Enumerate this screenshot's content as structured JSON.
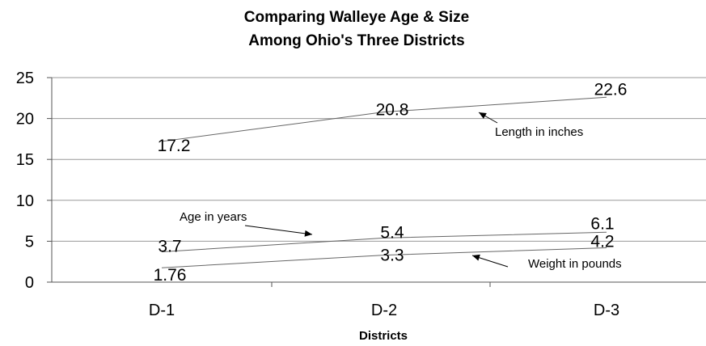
{
  "chart_data": {
    "type": "line",
    "title": [
      "Comparing Walleye Age & Size",
      "Among Ohio's Three Districts"
    ],
    "xlabel": "Districts",
    "ylabel": "",
    "categories": [
      "D-1",
      "D-2",
      "D-3"
    ],
    "ylim": [
      0,
      25
    ],
    "yticks": [
      "0",
      "5",
      "10",
      "15",
      "20",
      "25"
    ],
    "grid": true,
    "series": [
      {
        "name": "Length in inches",
        "values": [
          17.2,
          20.8,
          22.6
        ],
        "labels": [
          "17.2",
          "20.8",
          "22.6"
        ]
      },
      {
        "name": "Age in years",
        "values": [
          3.7,
          5.4,
          6.1
        ],
        "labels": [
          "3.7",
          "5.4",
          "6.1"
        ]
      },
      {
        "name": "Weight in pounds",
        "values": [
          1.76,
          3.3,
          4.2
        ],
        "labels": [
          "1.76",
          "3.3",
          "4.2"
        ]
      }
    ],
    "colors": {
      "line": "#666666",
      "grid": "#999999",
      "axis": "#555555",
      "text": "#000000"
    }
  }
}
